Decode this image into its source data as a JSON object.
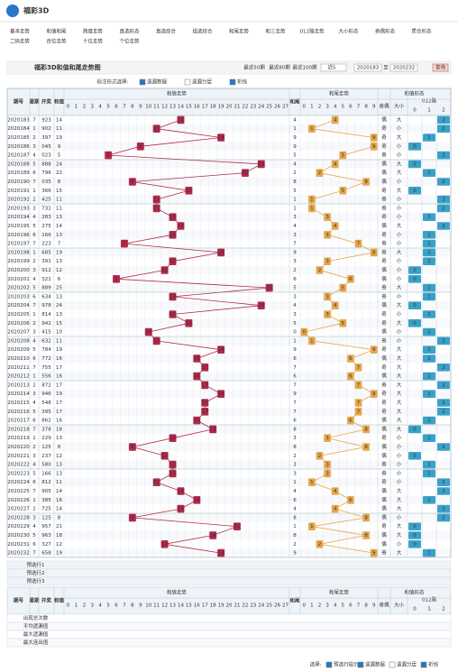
{
  "header": {
    "logo": "福彩3D"
  },
  "nav": [
    [
      "基本走势",
      "和值和尾",
      "跨度走势",
      "直选形态",
      "直选综合",
      "组选综合",
      "和尾走势",
      "和三走势",
      "012路走势",
      "大小形态",
      "奇偶形态",
      "质合形态"
    ],
    [
      "二码走势",
      "百位走势",
      "十位走势",
      "个位走势"
    ]
  ],
  "title": "福彩3D和值和尾走势图",
  "controls": {
    "recent": [
      "最近50期",
      "最近80期",
      "最近100期"
    ],
    "select": "近5",
    "from": "2020183",
    "to_label": "至",
    "to": "2020232",
    "query": "查询",
    "mark_label": "标注形式选择:",
    "options": [
      "遗漏数据",
      "遗漏分层",
      "折线"
    ],
    "checked": [
      true,
      false,
      true
    ]
  },
  "table": {
    "left_headers": [
      "期号",
      "星期",
      "开奖",
      "和值",
      "和尾"
    ],
    "groups": [
      "和值走势",
      "和尾走势",
      "和值形态"
    ],
    "sum_cols": [
      0,
      1,
      2,
      3,
      4,
      5,
      6,
      7,
      8,
      9,
      10,
      11,
      12,
      13,
      14,
      15,
      16,
      17,
      18,
      19,
      20,
      21,
      22,
      23,
      24,
      25,
      26,
      27
    ],
    "tail_cols": [
      0,
      1,
      2,
      3,
      4,
      5,
      6,
      7,
      8,
      9
    ],
    "form_headers": [
      "奇偶",
      "大小",
      "012路"
    ],
    "road_cols": [
      0,
      1,
      2
    ],
    "rows": [
      [
        "2020183",
        7,
        "923",
        14,
        4,
        "偶",
        "大",
        2
      ],
      [
        "2020184",
        1,
        "902",
        11,
        1,
        "奇",
        "小",
        2
      ],
      [
        "2020185",
        2,
        "397",
        19,
        9,
        "奇",
        "大",
        1
      ],
      [
        "2020186",
        3,
        "045",
        9,
        9,
        "奇",
        "小",
        0
      ],
      [
        "2020187",
        4,
        "023",
        5,
        5,
        "奇",
        "小",
        2
      ],
      [
        "2020188",
        5,
        "888",
        24,
        4,
        "偶",
        "大",
        0
      ],
      [
        "2020189",
        6,
        "796",
        22,
        2,
        "偶",
        "大",
        1
      ],
      [
        "2020190",
        7,
        "035",
        8,
        8,
        "偶",
        "小",
        2
      ],
      [
        "2020191",
        1,
        "366",
        15,
        5,
        "奇",
        "大",
        0
      ],
      [
        "2020192",
        2,
        "425",
        11,
        1,
        "奇",
        "小",
        2
      ],
      [
        "2020193",
        3,
        "731",
        11,
        1,
        "奇",
        "小",
        2
      ],
      [
        "2020194",
        4,
        "283",
        13,
        3,
        "奇",
        "小",
        1
      ],
      [
        "2020195",
        5,
        "275",
        14,
        4,
        "偶",
        "大",
        2
      ],
      [
        "2020196",
        6,
        "166",
        13,
        3,
        "奇",
        "小",
        1
      ],
      [
        "2020197",
        7,
        "223",
        7,
        7,
        "奇",
        "小",
        1
      ],
      [
        "2020198",
        1,
        "685",
        19,
        9,
        "奇",
        "大",
        1
      ],
      [
        "2020199",
        2,
        "391",
        13,
        3,
        "奇",
        "小",
        1
      ],
      [
        "2020200",
        3,
        "912",
        12,
        2,
        "偶",
        "小",
        0
      ],
      [
        "2020201",
        4,
        "321",
        6,
        6,
        "偶",
        "小",
        0
      ],
      [
        "2020202",
        5,
        "889",
        25,
        5,
        "奇",
        "大",
        1
      ],
      [
        "2020203",
        6,
        "634",
        13,
        3,
        "奇",
        "小",
        1
      ],
      [
        "2020204",
        7,
        "978",
        24,
        4,
        "偶",
        "大",
        0
      ],
      [
        "2020205",
        1,
        "814",
        13,
        3,
        "奇",
        "小",
        1
      ],
      [
        "2020206",
        2,
        "942",
        15,
        5,
        "奇",
        "大",
        0
      ],
      [
        "2020207",
        3,
        "415",
        10,
        0,
        "偶",
        "小",
        1
      ],
      [
        "2020208",
        4,
        "632",
        11,
        1,
        "奇",
        "小",
        2
      ],
      [
        "2020209",
        5,
        "784",
        19,
        9,
        "奇",
        "大",
        1
      ],
      [
        "2020210",
        6,
        "772",
        16,
        6,
        "偶",
        "大",
        1
      ],
      [
        "2020211",
        7,
        "755",
        17,
        7,
        "奇",
        "大",
        2
      ],
      [
        "2020212",
        1,
        "556",
        16,
        6,
        "偶",
        "大",
        1
      ],
      [
        "2020213",
        2,
        "872",
        17,
        7,
        "奇",
        "大",
        2
      ],
      [
        "2020214",
        3,
        "946",
        19,
        9,
        "奇",
        "大",
        1
      ],
      [
        "2020215",
        4,
        "548",
        17,
        7,
        "奇",
        "大",
        2
      ],
      [
        "2020216",
        5,
        "395",
        17,
        7,
        "奇",
        "大",
        2
      ],
      [
        "2020217",
        6,
        "862",
        16,
        6,
        "偶",
        "大",
        1
      ],
      [
        "2020218",
        7,
        "378",
        18,
        8,
        "偶",
        "大",
        0
      ],
      [
        "2020219",
        1,
        "229",
        13,
        3,
        "奇",
        "小",
        1
      ],
      [
        "2020220",
        2,
        "125",
        8,
        8,
        "偶",
        "小",
        2
      ],
      [
        "2020221",
        3,
        "237",
        12,
        2,
        "偶",
        "小",
        0
      ],
      [
        "2020222",
        4,
        "580",
        13,
        3,
        "奇",
        "小",
        1
      ],
      [
        "2020223",
        5,
        "166",
        13,
        3,
        "奇",
        "小",
        1
      ],
      [
        "2020224",
        6,
        "812",
        11,
        1,
        "奇",
        "小",
        2
      ],
      [
        "2020225",
        7,
        "905",
        14,
        4,
        "偶",
        "大",
        2
      ],
      [
        "2020226",
        1,
        "385",
        16,
        6,
        "偶",
        "大",
        1
      ],
      [
        "2020227",
        2,
        "725",
        14,
        4,
        "偶",
        "大",
        2
      ],
      [
        "2020228",
        3,
        "125",
        8,
        8,
        "偶",
        "小",
        2
      ],
      [
        "2020229",
        4,
        "957",
        21,
        1,
        "奇",
        "大",
        0
      ],
      [
        "2020230",
        5,
        "963",
        18,
        8,
        "偶",
        "大",
        0
      ],
      [
        "2020231",
        6,
        "327",
        12,
        2,
        "偶",
        "小",
        0
      ],
      [
        "2020232",
        7,
        "658",
        19,
        9,
        "奇",
        "大",
        1
      ]
    ],
    "preselect": [
      "预选行1",
      "预选行2",
      "预选行3"
    ],
    "stats": [
      "出现总次数",
      "平均遗漏值",
      "最大遗漏值",
      "最大连出值"
    ]
  },
  "footer": {
    "label": "选择:",
    "options": [
      "预选行提示",
      "遗漏数据",
      "遗漏分层",
      "折线"
    ],
    "checked": [
      true,
      true,
      false,
      true
    ]
  }
}
